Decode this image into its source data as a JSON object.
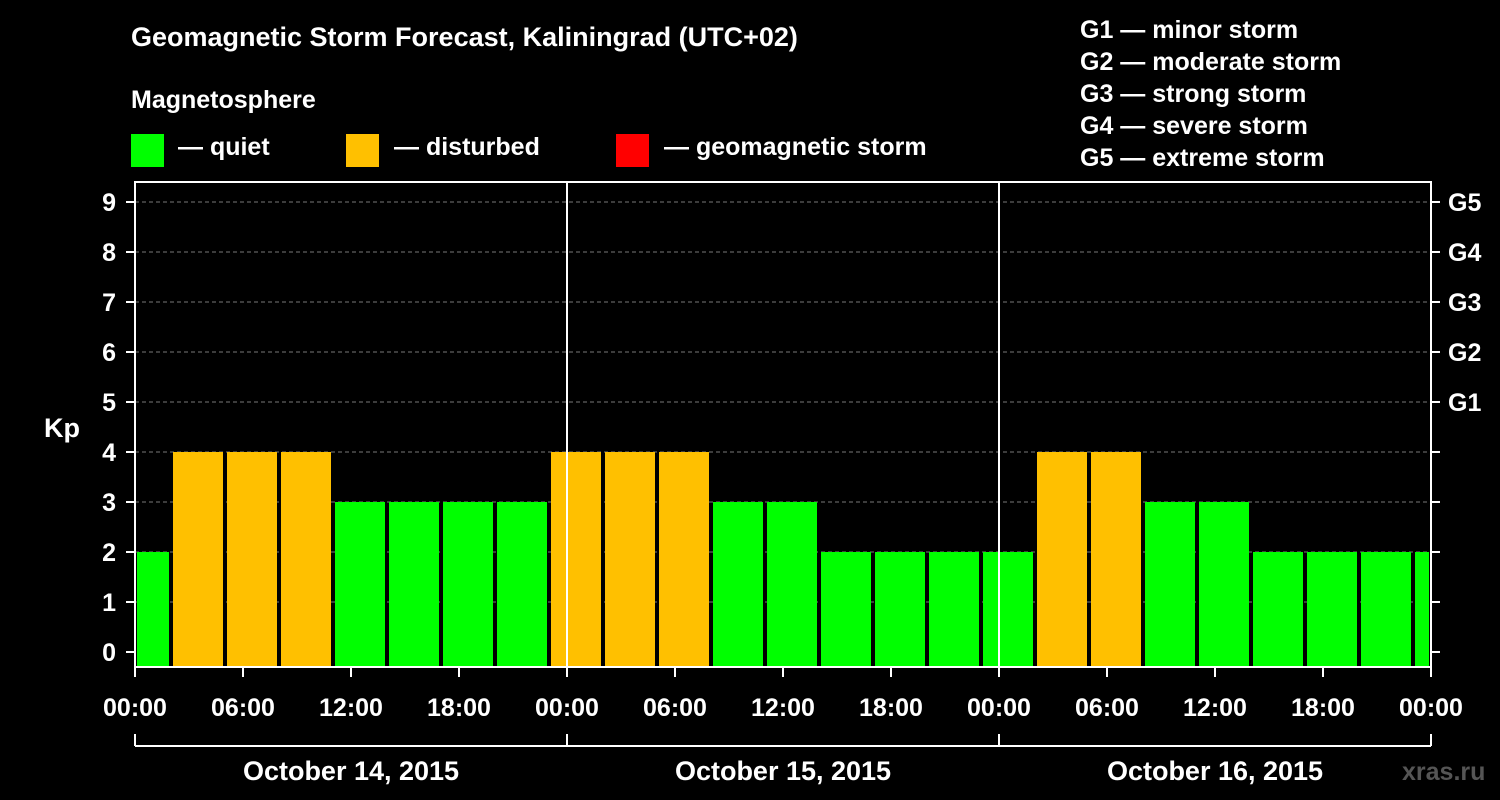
{
  "title": "Geomagnetic Storm Forecast, Kaliningrad (UTC+02)",
  "magnetosphere": {
    "heading": "Magnetosphere",
    "items": [
      {
        "label": "— quiet",
        "color": "#00ff00"
      },
      {
        "label": "— disturbed",
        "color": "#ffc000"
      },
      {
        "label": "— geomagnetic storm",
        "color": "#ff0000"
      }
    ]
  },
  "g_scale": [
    "G1 — minor storm",
    "G2 — moderate storm",
    "G3 — strong storm",
    "G4 — severe storm",
    "G5 — extreme storm"
  ],
  "watermark": "xras.ru",
  "chart_data": {
    "type": "bar",
    "ylabel": "Kp",
    "ylim": [
      0,
      9
    ],
    "yticks": [
      0,
      1,
      2,
      3,
      4,
      5,
      6,
      7,
      8,
      9
    ],
    "right_ticks": [
      {
        "kp": 5,
        "label": "G1"
      },
      {
        "kp": 6,
        "label": "G2"
      },
      {
        "kp": 7,
        "label": "G3"
      },
      {
        "kp": 8,
        "label": "G4"
      },
      {
        "kp": 9,
        "label": "G5"
      }
    ],
    "x_hours_total": 72,
    "x_ticks": [
      {
        "hour": 0,
        "label": "00:00"
      },
      {
        "hour": 6,
        "label": "06:00"
      },
      {
        "hour": 12,
        "label": "12:00"
      },
      {
        "hour": 18,
        "label": "18:00"
      },
      {
        "hour": 24,
        "label": "00:00"
      },
      {
        "hour": 30,
        "label": "06:00"
      },
      {
        "hour": 36,
        "label": "12:00"
      },
      {
        "hour": 42,
        "label": "18:00"
      },
      {
        "hour": 48,
        "label": "00:00"
      },
      {
        "hour": 54,
        "label": "06:00"
      },
      {
        "hour": 60,
        "label": "12:00"
      },
      {
        "hour": 66,
        "label": "18:00"
      },
      {
        "hour": 72,
        "label": "00:00"
      }
    ],
    "days": [
      {
        "label": "October 14, 2015",
        "start_hour": 0,
        "end_hour": 24
      },
      {
        "label": "October 15, 2015",
        "start_hour": 24,
        "end_hour": 48
      },
      {
        "label": "October 16, 2015",
        "start_hour": 48,
        "end_hour": 72
      }
    ],
    "bars": [
      {
        "start_hour": 0,
        "end_hour": 2,
        "kp": 2,
        "status": "quiet"
      },
      {
        "start_hour": 2,
        "end_hour": 5,
        "kp": 4,
        "status": "disturbed"
      },
      {
        "start_hour": 5,
        "end_hour": 8,
        "kp": 4,
        "status": "disturbed"
      },
      {
        "start_hour": 8,
        "end_hour": 11,
        "kp": 4,
        "status": "disturbed"
      },
      {
        "start_hour": 11,
        "end_hour": 14,
        "kp": 3,
        "status": "quiet"
      },
      {
        "start_hour": 14,
        "end_hour": 17,
        "kp": 3,
        "status": "quiet"
      },
      {
        "start_hour": 17,
        "end_hour": 20,
        "kp": 3,
        "status": "quiet"
      },
      {
        "start_hour": 20,
        "end_hour": 23,
        "kp": 3,
        "status": "quiet"
      },
      {
        "start_hour": 23,
        "end_hour": 26,
        "kp": 4,
        "status": "disturbed"
      },
      {
        "start_hour": 26,
        "end_hour": 29,
        "kp": 4,
        "status": "disturbed"
      },
      {
        "start_hour": 29,
        "end_hour": 32,
        "kp": 4,
        "status": "disturbed"
      },
      {
        "start_hour": 32,
        "end_hour": 35,
        "kp": 3,
        "status": "quiet"
      },
      {
        "start_hour": 35,
        "end_hour": 38,
        "kp": 3,
        "status": "quiet"
      },
      {
        "start_hour": 38,
        "end_hour": 41,
        "kp": 2,
        "status": "quiet"
      },
      {
        "start_hour": 41,
        "end_hour": 44,
        "kp": 2,
        "status": "quiet"
      },
      {
        "start_hour": 44,
        "end_hour": 47,
        "kp": 2,
        "status": "quiet"
      },
      {
        "start_hour": 47,
        "end_hour": 50,
        "kp": 2,
        "status": "quiet"
      },
      {
        "start_hour": 50,
        "end_hour": 53,
        "kp": 4,
        "status": "disturbed"
      },
      {
        "start_hour": 53,
        "end_hour": 56,
        "kp": 4,
        "status": "disturbed"
      },
      {
        "start_hour": 56,
        "end_hour": 59,
        "kp": 3,
        "status": "quiet"
      },
      {
        "start_hour": 59,
        "end_hour": 62,
        "kp": 3,
        "status": "quiet"
      },
      {
        "start_hour": 62,
        "end_hour": 65,
        "kp": 2,
        "status": "quiet"
      },
      {
        "start_hour": 65,
        "end_hour": 68,
        "kp": 2,
        "status": "quiet"
      },
      {
        "start_hour": 68,
        "end_hour": 71,
        "kp": 2,
        "status": "quiet"
      },
      {
        "start_hour": 71,
        "end_hour": 72,
        "kp": 2,
        "status": "quiet"
      }
    ],
    "status_colors": {
      "quiet": "#00ff00",
      "disturbed": "#ffc000",
      "storm": "#ff0000"
    }
  }
}
